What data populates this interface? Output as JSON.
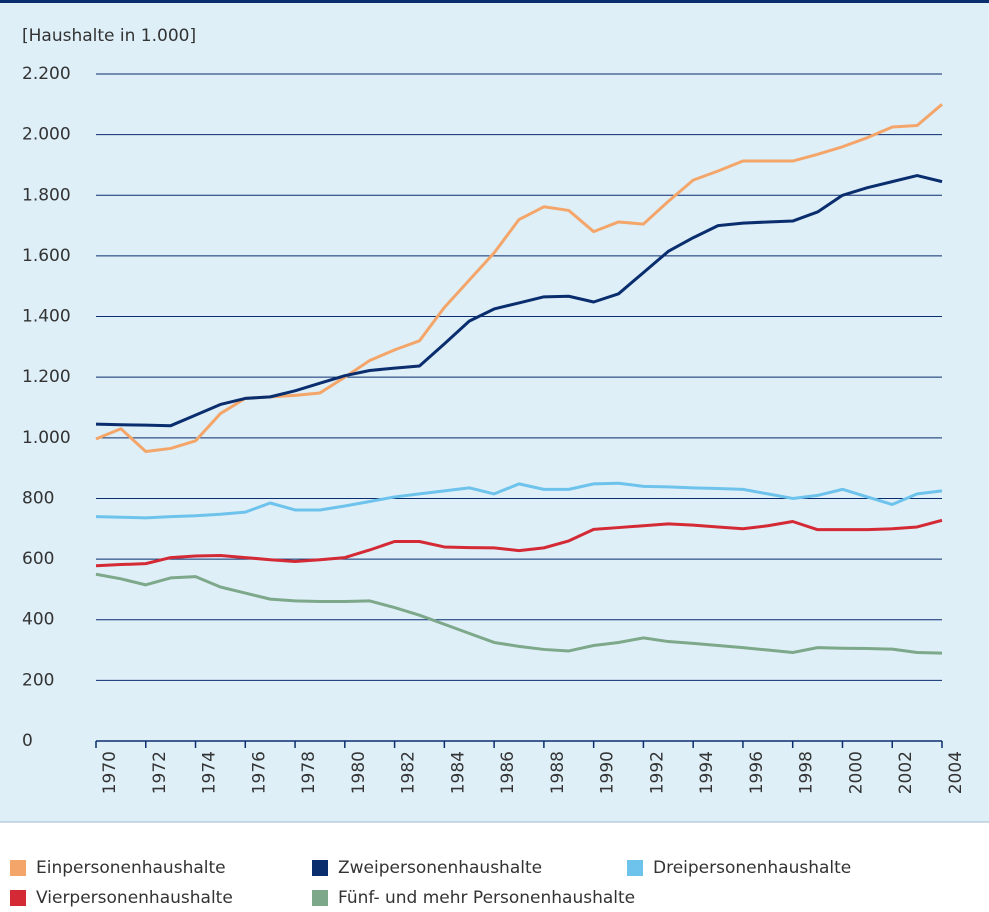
{
  "chart_data": {
    "type": "line",
    "y_label": "[Haushalte in 1.000]",
    "x": [
      1970,
      1971,
      1972,
      1973,
      1974,
      1975,
      1976,
      1977,
      1978,
      1979,
      1980,
      1981,
      1982,
      1983,
      1984,
      1985,
      1986,
      1987,
      1988,
      1989,
      1990,
      1991,
      1992,
      1993,
      1994,
      1995,
      1996,
      1997,
      1998,
      1999,
      2000,
      2001,
      2002,
      2003,
      2004
    ],
    "xlim": [
      1970,
      2004
    ],
    "xticks": [
      1970,
      1972,
      1974,
      1976,
      1978,
      1980,
      1982,
      1984,
      1986,
      1988,
      1990,
      1992,
      1994,
      1996,
      1998,
      2000,
      2002,
      2004
    ],
    "ylim": [
      0,
      2200
    ],
    "yticks": [
      0,
      200,
      400,
      600,
      800,
      {
        "value": 1000,
        "label": "1.000"
      },
      {
        "value": 1200,
        "label": "1.200"
      },
      {
        "value": 1400,
        "label": "1.400"
      },
      {
        "value": 1600,
        "label": "1.600"
      },
      {
        "value": 1800,
        "label": "1.800"
      },
      {
        "value": 2000,
        "label": "2.000"
      },
      {
        "value": 2200,
        "label": "2.200"
      }
    ],
    "grid": true,
    "legend": "bottom",
    "series": [
      {
        "name": "Einpersonenhaushalte",
        "color": "#f4a66a",
        "values": [
          996,
          1030,
          955,
          965,
          990,
          1080,
          1130,
          1135,
          1140,
          1148,
          1200,
          1255,
          1290,
          1320,
          1430,
          1520,
          1610,
          1720,
          1762,
          1750,
          1680,
          1712,
          1705,
          1780,
          1850,
          1880,
          1913,
          1913,
          1913,
          1935,
          1960,
          1990,
          2025,
          2030,
          2100
        ]
      },
      {
        "name": "Zweipersonenhaushalte",
        "color": "#0a2d6e",
        "values": [
          1045,
          1043,
          1042,
          1040,
          1075,
          1110,
          1130,
          1135,
          1155,
          1180,
          1205,
          1222,
          1230,
          1237,
          1310,
          1385,
          1425,
          1445,
          1465,
          1467,
          1448,
          1475,
          1545,
          1615,
          1660,
          1700,
          1708,
          1712,
          1715,
          1745,
          1800,
          1825,
          1845,
          1865,
          1845
        ]
      },
      {
        "name": "Dreipersonenhaushalte",
        "color": "#6ec3ec",
        "values": [
          740,
          738,
          736,
          740,
          743,
          748,
          755,
          785,
          762,
          762,
          775,
          790,
          805,
          815,
          825,
          835,
          815,
          848,
          830,
          830,
          848,
          850,
          840,
          838,
          835,
          833,
          830,
          815,
          800,
          810,
          830,
          805,
          780,
          815,
          825
        ]
      },
      {
        "name": "Vierpersonenhaushalte",
        "color": "#d42a35",
        "values": [
          578,
          582,
          585,
          605,
          610,
          612,
          605,
          598,
          592,
          598,
          605,
          630,
          658,
          658,
          640,
          638,
          637,
          628,
          637,
          660,
          698,
          704,
          710,
          716,
          712,
          706,
          700,
          710,
          724,
          697,
          697,
          697,
          700,
          706,
          728
        ]
      },
      {
        "name": "Fünf- und mehr Personenhaushalte",
        "color": "#7ea88a",
        "values": [
          550,
          535,
          515,
          538,
          542,
          508,
          488,
          468,
          462,
          460,
          460,
          462,
          440,
          415,
          385,
          355,
          325,
          312,
          302,
          297,
          315,
          325,
          340,
          328,
          322,
          315,
          308,
          300,
          292,
          308,
          306,
          305,
          303,
          292,
          290
        ]
      }
    ]
  }
}
